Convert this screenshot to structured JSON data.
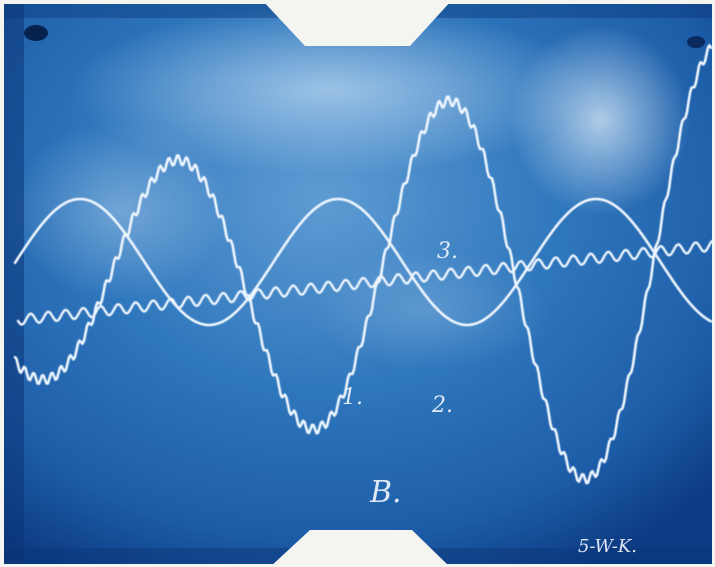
{
  "photo": {
    "labels": {
      "trace_1": "1.",
      "trace_2": "2.",
      "trace_3": "3.",
      "plate": "B.",
      "signature": "5-W-K."
    },
    "colors": {
      "background_edge": "#0c3f86",
      "background_mid": "#2b73b9",
      "background_glow": "#7fb3e3",
      "trace": "#eef6ff",
      "paper": "#f4f4f0"
    }
  }
}
